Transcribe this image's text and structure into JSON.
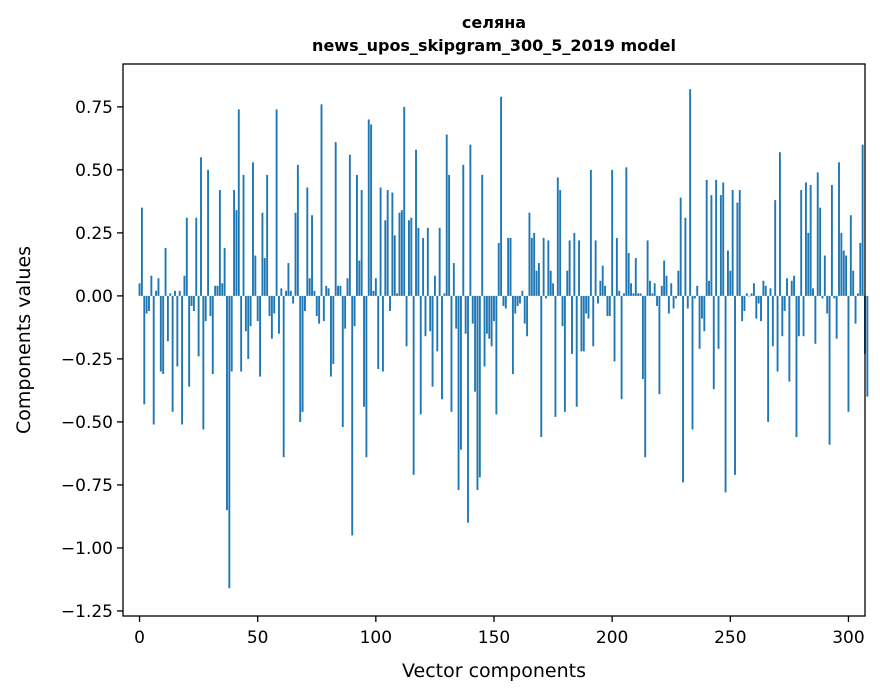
{
  "chart_data": {
    "type": "bar",
    "title": "селяна",
    "subtitle": "news_upos_skipgram_300_5_2019 model",
    "xlabel": "Vector components",
    "ylabel": "Components values",
    "xlim": [
      -7,
      307
    ],
    "ylim": [
      -1.27,
      0.92
    ],
    "xticks": [
      0,
      50,
      100,
      150,
      200,
      250,
      300
    ],
    "yticks": [
      -1.25,
      -1.0,
      -0.75,
      -0.5,
      -0.25,
      0.0,
      0.25,
      0.5,
      0.75
    ],
    "ytick_labels": [
      "−1.25",
      "−1.00",
      "−0.75",
      "−0.50",
      "−0.25",
      "0.00",
      "0.25",
      "0.50",
      "0.75"
    ],
    "bar_color": "#1f77b4",
    "values": [
      0.05,
      0.35,
      -0.43,
      -0.07,
      -0.06,
      0.08,
      -0.51,
      0.02,
      0.07,
      -0.3,
      -0.31,
      0.19,
      -0.18,
      0.01,
      -0.46,
      0.02,
      -0.28,
      0.02,
      -0.51,
      0.08,
      0.31,
      -0.36,
      -0.04,
      -0.06,
      0.31,
      -0.24,
      0.55,
      -0.53,
      -0.1,
      0.5,
      -0.08,
      -0.31,
      0.04,
      0.04,
      0.42,
      0.05,
      0.19,
      -0.85,
      -1.16,
      -0.3,
      0.42,
      0.34,
      0.74,
      -0.3,
      0.48,
      -0.14,
      -0.25,
      -0.12,
      0.53,
      0.16,
      -0.1,
      -0.32,
      0.33,
      0.15,
      0.48,
      -0.08,
      -0.17,
      -0.07,
      0.74,
      -0.15,
      0.03,
      -0.64,
      0.02,
      0.13,
      0.02,
      -0.03,
      0.33,
      0.52,
      -0.5,
      -0.46,
      -0.06,
      0.43,
      0.07,
      0.32,
      0.02,
      -0.08,
      -0.11,
      0.76,
      -0.1,
      0.04,
      0.03,
      -0.32,
      -0.27,
      0.61,
      0.04,
      0.04,
      -0.52,
      -0.13,
      0.07,
      0.56,
      -0.95,
      -0.12,
      0.48,
      0.14,
      0.42,
      -0.44,
      -0.64,
      0.7,
      0.68,
      0.02,
      0.07,
      -0.29,
      0.43,
      -0.3,
      0.3,
      0.42,
      -0.06,
      0.41,
      0.24,
      0.01,
      0.33,
      0.34,
      0.75,
      -0.2,
      0.3,
      0.31,
      -0.71,
      0.58,
      0.27,
      -0.47,
      0.23,
      -0.16,
      0.27,
      -0.14,
      -0.36,
      0.08,
      -0.22,
      0.27,
      -0.41,
      0.01,
      0.64,
      0.48,
      -0.46,
      0.13,
      -0.13,
      -0.77,
      -0.61,
      0.52,
      -0.15,
      -0.9,
      0.6,
      -0.11,
      -0.38,
      -0.77,
      -0.72,
      0.48,
      -0.28,
      -0.15,
      -0.17,
      -0.2,
      -0.1,
      -0.47,
      0.21,
      0.79,
      -0.04,
      -0.05,
      0.23,
      0.23,
      -0.31,
      -0.07,
      -0.04,
      -0.03,
      0.02,
      -0.11,
      -0.16,
      0.33,
      0.23,
      0.25,
      0.1,
      0.13,
      -0.56,
      0.23,
      -0.01,
      0.22,
      0.1,
      0.05,
      -0.48,
      0.47,
      0.42,
      -0.12,
      -0.46,
      0.1,
      0.22,
      -0.23,
      0.25,
      -0.44,
      0.22,
      -0.22,
      -0.22,
      -0.07,
      -0.09,
      0.5,
      -0.2,
      0.22,
      -0.03,
      0.06,
      0.12,
      0.04,
      -0.08,
      -0.08,
      0.5,
      -0.26,
      0.23,
      0.02,
      -0.41,
      0.01,
      0.51,
      0.17,
      0.05,
      0.01,
      0.15,
      0.01,
      0.01,
      -0.33,
      -0.64,
      0.22,
      0.06,
      0.01,
      0.05,
      -0.04,
      -0.39,
      0.04,
      0.14,
      0.08,
      -0.07,
      0.05,
      -0.05,
      -0.01,
      0.1,
      0.39,
      -0.74,
      0.31,
      -0.05,
      0.82,
      -0.53,
      -0.01,
      0.04,
      -0.21,
      -0.09,
      -0.14,
      0.46,
      0.06,
      0.4,
      -0.37,
      0.46,
      -0.21,
      0.4,
      0.45,
      -0.78,
      0.18,
      0.1,
      0.42,
      -0.71,
      0.37,
      0.42,
      -0.1,
      -0.06,
      0.01,
      0.0,
      0.01,
      0.05,
      -0.09,
      -0.03,
      -0.1,
      0.06,
      0.04,
      -0.5,
      0.03,
      -0.2,
      0.38,
      -0.3,
      0.57,
      -0.16,
      -0.06,
      0.07,
      -0.34,
      0.06,
      0.08,
      -0.56,
      -0.16,
      0.42,
      -0.16,
      0.45,
      0.25,
      0.44,
      0.03,
      -0.19,
      0.49,
      0.35,
      -0.01,
      0.16,
      -0.07,
      -0.59,
      0.44,
      -0.01,
      -0.17,
      0.53,
      0.25,
      0.18,
      0.16,
      -0.46,
      0.32,
      0.1,
      -0.11,
      0.01,
      0.21,
      0.6,
      -0.23,
      -0.4
    ]
  }
}
